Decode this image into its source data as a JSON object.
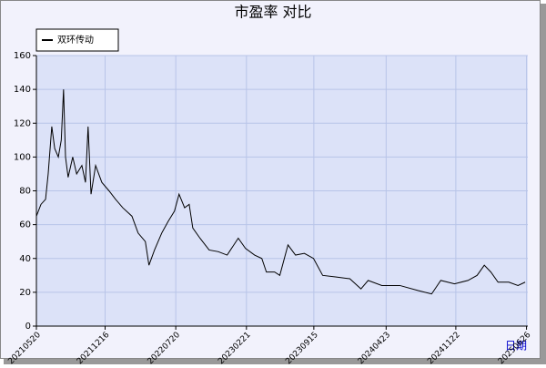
{
  "chart_data": {
    "type": "line",
    "title": "市盈率 对比",
    "xlabel": "日期",
    "x": [
      "20210520",
      "20210603",
      "20210617",
      "20210625",
      "20210706",
      "20210715",
      "20210726",
      "20210804",
      "20210811",
      "20210817",
      "20210825",
      "20210908",
      "20210920",
      "20211006",
      "20211017",
      "20211025",
      "20211103",
      "20211117",
      "20211206",
      "20211228",
      "20220117",
      "20220208",
      "20220308",
      "20220327",
      "20220418",
      "20220429",
      "20220516",
      "20220607",
      "20220627",
      "20220716",
      "20220730",
      "20220816",
      "20220830",
      "20220910",
      "20221002",
      "20221030",
      "20221127",
      "20221224",
      "20230127",
      "20230218",
      "20230318",
      "20230409",
      "20230423",
      "20230518",
      "20230603",
      "20230628",
      "20230721",
      "20230817",
      "20230914",
      "20231012",
      "20231123",
      "20240103",
      "20240206",
      "20240228",
      "20240410",
      "20240604",
      "20240730",
      "20240909",
      "20241007",
      "20241118",
      "20241229",
      "20250126",
      "20250217",
      "20250309",
      "20250331",
      "20250503",
      "20250531",
      "20250622"
    ],
    "series": [
      {
        "name": "双环传动",
        "color": "#000000",
        "values": [
          65,
          72,
          75,
          90,
          118,
          105,
          100,
          110,
          140,
          100,
          88,
          100,
          90,
          95,
          85,
          118,
          78,
          95,
          85,
          80,
          75,
          70,
          65,
          55,
          50,
          36,
          45,
          55,
          62,
          68,
          78,
          70,
          72,
          58,
          52,
          45,
          44,
          42,
          52,
          46,
          42,
          40,
          32,
          32,
          30,
          48,
          42,
          43,
          40,
          30,
          29,
          28,
          22,
          27,
          24,
          24,
          21,
          19,
          27,
          25,
          27,
          30,
          36,
          32,
          26,
          26,
          24,
          26
        ]
      }
    ],
    "xlim": [
      "20210520",
      "20250630"
    ],
    "xticks": [
      "20210520",
      "20211216",
      "20220720",
      "20230221",
      "20230915",
      "20240423",
      "20241122",
      "20250626"
    ],
    "ylim": [
      0,
      160
    ],
    "yticks": [
      0,
      20,
      40,
      60,
      80,
      100,
      120,
      140,
      160
    ],
    "grid": true,
    "legend": "top-left"
  }
}
